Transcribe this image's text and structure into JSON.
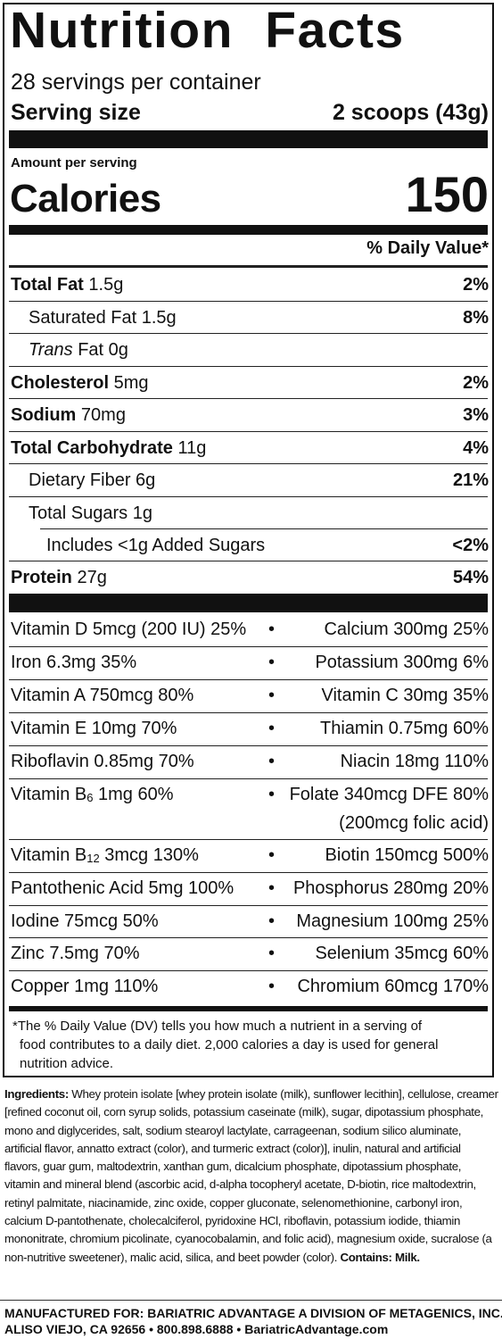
{
  "label": {
    "title": "Nutrition Facts",
    "servings_per_container": "28 servings per container",
    "serving_size_label": "Serving size",
    "serving_size_value": "2 scoops (43g)",
    "amount_per_serving": "Amount per serving",
    "calories_label": "Calories",
    "calories_value": "150",
    "daily_value_header": "% Daily Value*"
  },
  "nutrients": [
    {
      "name": "Total Fat",
      "amount": "1.5g",
      "dv": "2%"
    },
    {
      "name": "Saturated Fat",
      "amount": "1.5g",
      "dv": "8%"
    },
    {
      "name": "Trans",
      "amount": "Fat 0g",
      "dv": ""
    },
    {
      "name": "Cholesterol",
      "amount": "5mg",
      "dv": "2%"
    },
    {
      "name": "Sodium",
      "amount": "70mg",
      "dv": "3%"
    },
    {
      "name": "Total Carbohydrate",
      "amount": "11g",
      "dv": "4%"
    },
    {
      "name": "Dietary Fiber",
      "amount": "6g",
      "dv": "21%"
    },
    {
      "name": "Total Sugars",
      "amount": "1g",
      "dv": ""
    },
    {
      "name": "Includes <1g Added Sugars",
      "amount": "",
      "dv": "<2%"
    },
    {
      "name": "Protein",
      "amount": "27g",
      "dv": "54%"
    }
  ],
  "vitamins": [
    {
      "left": "Vitamin D 5mcg (200 IU) 25%",
      "right": "Calcium 300mg 25%"
    },
    {
      "left": "Iron 6.3mg 35%",
      "right": "Potassium 300mg 6%"
    },
    {
      "left": "Vitamin A 750mcg 80%",
      "right": "Vitamin C 30mg 35%"
    },
    {
      "left": "Vitamin E 10mg 70%",
      "right": "Thiamin 0.75mg 60%"
    },
    {
      "left": "Riboflavin 0.85mg 70%",
      "right": "Niacin 18mg 110%"
    },
    {
      "left_a": "Vitamin B",
      "left_sub": "6",
      "left_b": " 1mg 60%",
      "right": "Folate 340mcg DFE 80%",
      "right_2": "(200mcg folic acid)"
    },
    {
      "left_a": "Vitamin B",
      "left_sub": "12",
      "left_b": " 3mcg 130%",
      "right": "Biotin 150mcg 500%"
    },
    {
      "left": "Pantothenic Acid 5mg 100%",
      "right": "Phosphorus 280mg 20%"
    },
    {
      "left": "Iodine 75mcg 50%",
      "right": "Magnesium 100mg 25%"
    },
    {
      "left": "Zinc 7.5mg 70%",
      "right": "Selenium 35mcg 60%"
    },
    {
      "left": "Copper 1mg 110%",
      "right": "Chromium 60mcg 170%"
    }
  ],
  "bullet": "•",
  "footnote": {
    "line1": "*The % Daily Value (DV) tells you how much a nutrient in a serving of",
    "line2": "food contributes to a daily diet. 2,000 calories a day is used for general",
    "line3": "nutrition advice."
  },
  "ingredients": {
    "label": "Ingredients:",
    "text": " Whey protein isolate [whey protein isolate (milk), sunflower lecithin], cellulose, creamer [refined coconut oil, corn syrup solids, potassium caseinate (milk), sugar, dipotassium phosphate, mono and diglycerides, salt, sodium stearoyl lactylate, carrageenan, sodium silico aluminate, artificial flavor, annatto extract (color), and turmeric extract (color)], inulin, natural and artificial flavors, guar gum, maltodextrin, xanthan gum, dicalcium phosphate, dipotassium phosphate, vitamin and mineral blend (ascorbic acid, d-alpha tocopheryl acetate, D-biotin, rice maltodextrin, retinyl palmitate, niacinamide, zinc oxide, copper gluconate, selenomethionine, carbonyl iron, calcium D-pantothenate, cholecalciferol, pyridoxine HCl, riboflavin, potassium iodide, thiamin mononitrate, chromium picolinate, cyanocobalamin, and folic acid), magnesium oxide, sucralose (a non-nutritive sweetener), malic acid, silica, and beet powder (color).",
    "contains_label": "Contains: Milk."
  },
  "manufacturer": {
    "line1": "MANUFACTURED FOR: BARIATRIC ADVANTAGE A DIVISION OF METAGENICS, INC.",
    "line2": "ALISO VIEJO, CA 92656 • 800.898.6888 • BariatricAdvantage.com"
  }
}
